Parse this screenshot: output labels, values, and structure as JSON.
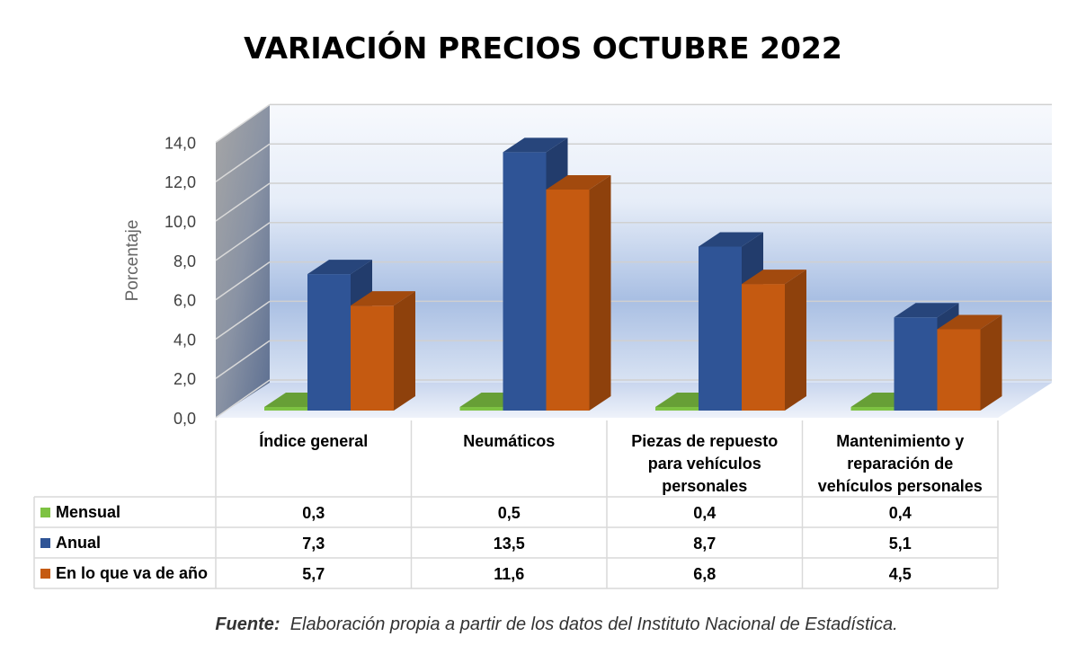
{
  "chart_data": {
    "type": "bar",
    "title": "VARIACIÓN PRECIOS OCTUBRE 2022",
    "ylabel": "Porcentaje",
    "ylim": [
      0,
      14
    ],
    "yticks": [
      "0,0",
      "2,0",
      "4,0",
      "6,0",
      "8,0",
      "10,0",
      "12,0",
      "14,0"
    ],
    "categories": [
      [
        "Índice general"
      ],
      [
        "Neumáticos"
      ],
      [
        "Piezas de repuesto",
        "para vehículos",
        "personales"
      ],
      [
        "Mantenimiento y",
        "reparación de",
        "vehículos personales"
      ]
    ],
    "series": [
      {
        "name": "Mensual",
        "color": "#7dc242",
        "values": [
          0.3,
          0.5,
          0.4,
          0.4
        ],
        "labels": [
          "0,3",
          "0,5",
          "0,4",
          "0,4"
        ]
      },
      {
        "name": "Anual",
        "color": "#2f5496",
        "values": [
          7.3,
          13.5,
          8.7,
          5.1
        ],
        "labels": [
          "7,3",
          "13,5",
          "8,7",
          "5,1"
        ]
      },
      {
        "name": "En lo que va de año",
        "color": "#c55a11",
        "values": [
          5.7,
          11.6,
          6.8,
          4.5
        ],
        "labels": [
          "5,7",
          "11,6",
          "6,8",
          "4,5"
        ]
      }
    ],
    "grid": true,
    "data_table": true
  },
  "source": {
    "label": "Fuente:",
    "text": "Elaboración propia a partir de los datos del Instituto Nacional de Estadística."
  }
}
